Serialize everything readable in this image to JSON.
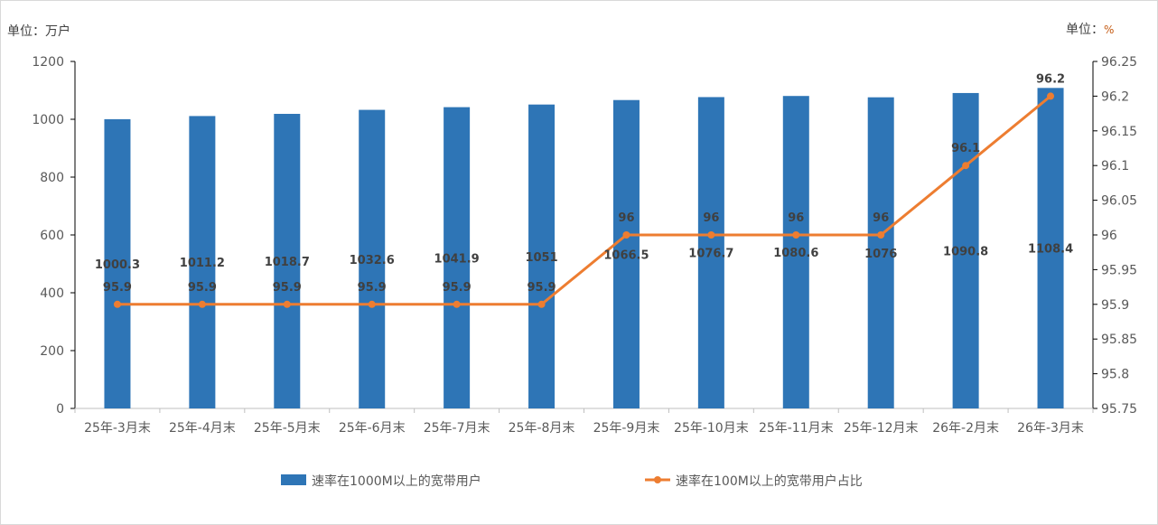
{
  "chart_data": {
    "type": "bar+line",
    "left_unit": "单位：万户",
    "right_unit_prefix": "单位：",
    "right_unit_symbol": "%",
    "categories": [
      "25年-3月末",
      "25年-4月末",
      "25年-5月末",
      "25年-6月末",
      "25年-7月末",
      "25年-8月末",
      "25年-9月末",
      "25年-10月末",
      "25年-11月末",
      "25年-12月末",
      "26年-2月末",
      "26年-3月末"
    ],
    "series": [
      {
        "name": "速率在1000M以上的宽带用户",
        "type": "bar",
        "axis": "left",
        "color": "#2e75b6",
        "values": [
          1000.3,
          1011.2,
          1018.7,
          1032.6,
          1041.9,
          1051,
          1066.5,
          1076.7,
          1080.6,
          1076,
          1090.8,
          1108.4
        ]
      },
      {
        "name": "速率在100M以上的宽带用户占比",
        "type": "line",
        "axis": "right",
        "color": "#ed7d31",
        "values": [
          95.9,
          95.9,
          95.9,
          95.9,
          95.9,
          95.9,
          96,
          96,
          96,
          96,
          96.1,
          96.2
        ]
      }
    ],
    "left_axis": {
      "ylim": [
        0,
        1200
      ],
      "ticks": [
        "0",
        "200",
        "400",
        "600",
        "800",
        "1000",
        "1200"
      ]
    },
    "right_axis": {
      "ylim": [
        95.75,
        96.25
      ],
      "ticks": [
        "95.75",
        "95.8",
        "95.85",
        "95.9",
        "95.95",
        "96",
        "96.05",
        "96.1",
        "96.15",
        "96.2",
        "96.25"
      ]
    },
    "legend": "bottom",
    "grid": false
  }
}
